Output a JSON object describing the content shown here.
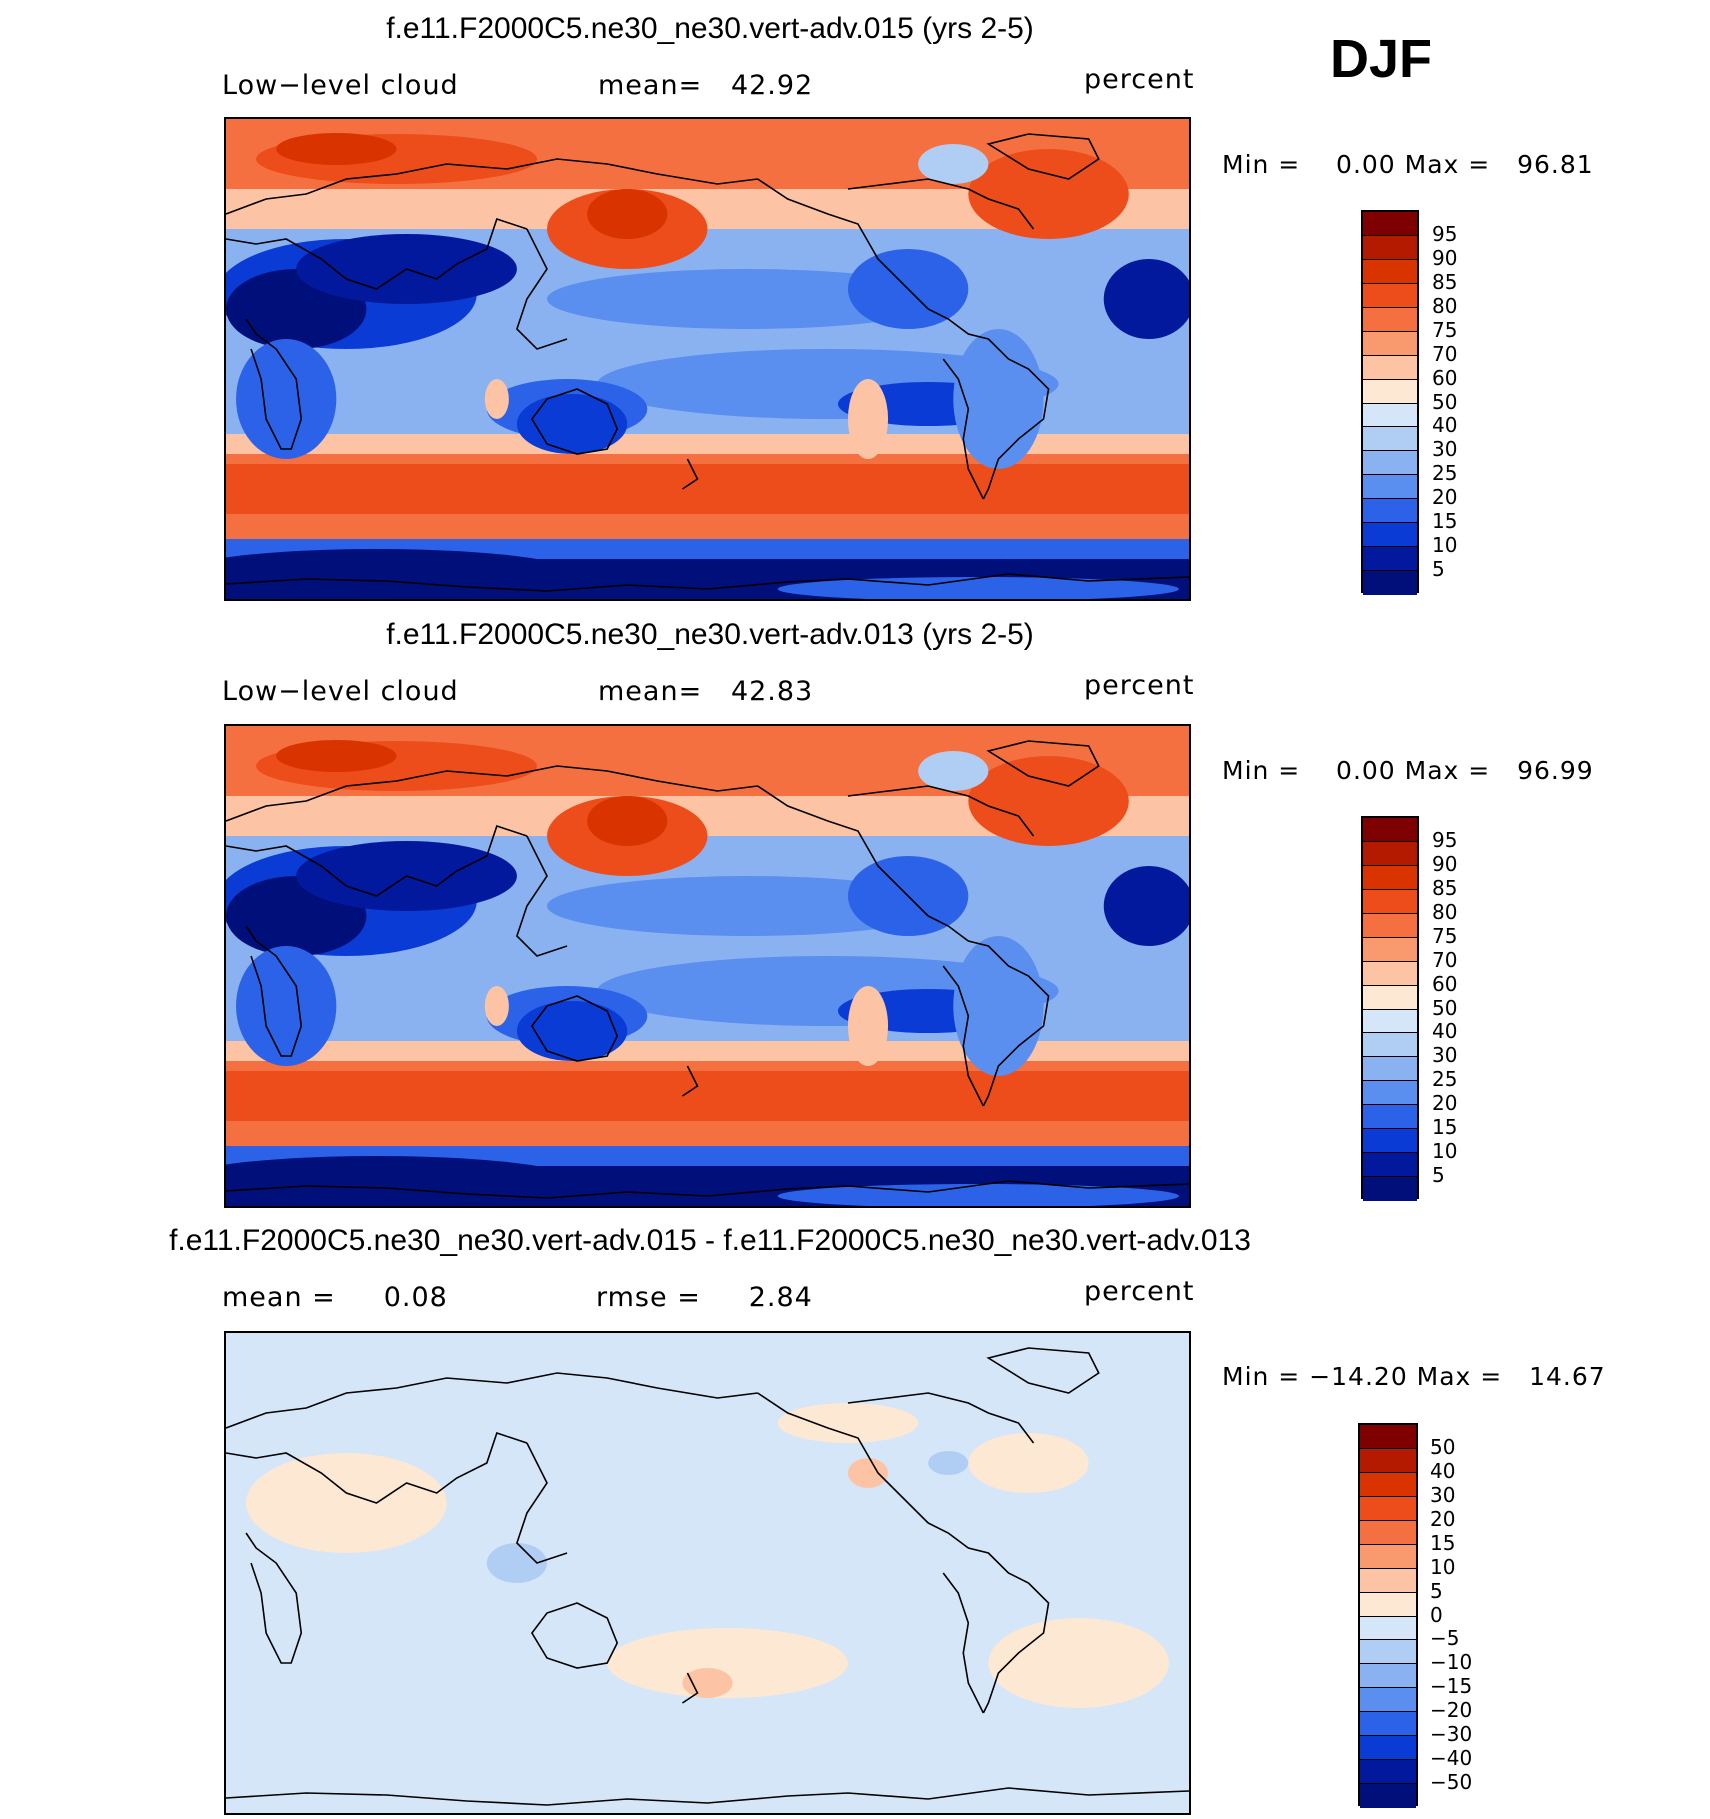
{
  "season": "DJF",
  "panels": [
    {
      "title": "f.e11.F2000C5.ne30_ne30.vert-adv.015 (yrs 2-5)",
      "left_label": "Low−level cloud",
      "center_label": "mean=   42.92",
      "right_label": "percent",
      "minmax": "Min =    0.00 Max =   96.81",
      "colorbar_ticks": [
        "95",
        "90",
        "85",
        "80",
        "75",
        "70",
        "60",
        "50",
        "40",
        "30",
        "25",
        "20",
        "15",
        "10",
        "5"
      ]
    },
    {
      "title": "f.e11.F2000C5.ne30_ne30.vert-adv.013 (yrs 2-5)",
      "left_label": "Low−level cloud",
      "center_label": "mean=   42.83",
      "right_label": "percent",
      "minmax": "Min =    0.00 Max =   96.99",
      "colorbar_ticks": [
        "95",
        "90",
        "85",
        "80",
        "75",
        "70",
        "60",
        "50",
        "40",
        "30",
        "25",
        "20",
        "15",
        "10",
        "5"
      ]
    },
    {
      "title": "f.e11.F2000C5.ne30_ne30.vert-adv.015 - f.e11.F2000C5.ne30_ne30.vert-adv.013",
      "left_label": "mean =     0.08",
      "center_label": "rmse =     2.84",
      "right_label": "percent",
      "minmax": "Min = −14.20 Max =   14.67",
      "colorbar_ticks": [
        "50",
        "40",
        "30",
        "20",
        "15",
        "10",
        "5",
        "0",
        "−5",
        "−10",
        "−15",
        "−20",
        "−30",
        "−40",
        "−50"
      ]
    }
  ],
  "colorbar_colors": [
    "#7f0000",
    "#b31a00",
    "#d93300",
    "#ed4d1a",
    "#f57040",
    "#f99a6e",
    "#fcc4a4",
    "#fde8d4",
    "#d5e6f8",
    "#b0cdf4",
    "#8bb2f0",
    "#5a8ff0",
    "#2b62e8",
    "#0a3bd4",
    "#02199e",
    "#000f7a"
  ]
}
